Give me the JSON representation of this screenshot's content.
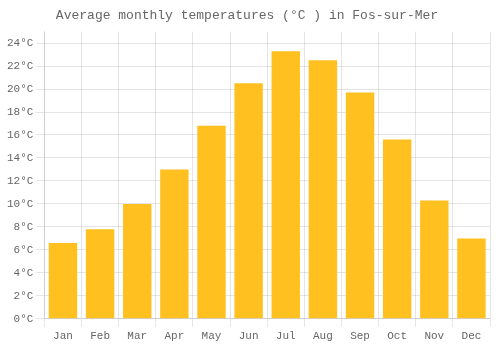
{
  "chart_data": {
    "type": "bar",
    "title": "Average monthly temperatures (°C ) in Fos-sur-Mer",
    "categories": [
      "Jan",
      "Feb",
      "Mar",
      "Apr",
      "May",
      "Jun",
      "Jul",
      "Aug",
      "Sep",
      "Oct",
      "Nov",
      "Dec"
    ],
    "values": [
      6.6,
      7.8,
      10.0,
      13.0,
      16.8,
      20.5,
      23.3,
      22.5,
      19.7,
      15.6,
      10.3,
      7.0
    ],
    "color": "#FFC020",
    "ylim": [
      0,
      25
    ],
    "yticks": [
      {
        "value": 0,
        "label": "0°C"
      },
      {
        "value": 2,
        "label": "2°C"
      },
      {
        "value": 4,
        "label": "4°C"
      },
      {
        "value": 6,
        "label": "6°C"
      },
      {
        "value": 8,
        "label": "8°C"
      },
      {
        "value": 10,
        "label": "10°C"
      },
      {
        "value": 12,
        "label": "12°C"
      },
      {
        "value": 14,
        "label": "14°C"
      },
      {
        "value": 16,
        "label": "16°C"
      },
      {
        "value": 18,
        "label": "18°C"
      },
      {
        "value": 20,
        "label": "20°C"
      },
      {
        "value": 22,
        "label": "22°C"
      },
      {
        "value": 24,
        "label": "24°C"
      }
    ],
    "grid": true
  }
}
